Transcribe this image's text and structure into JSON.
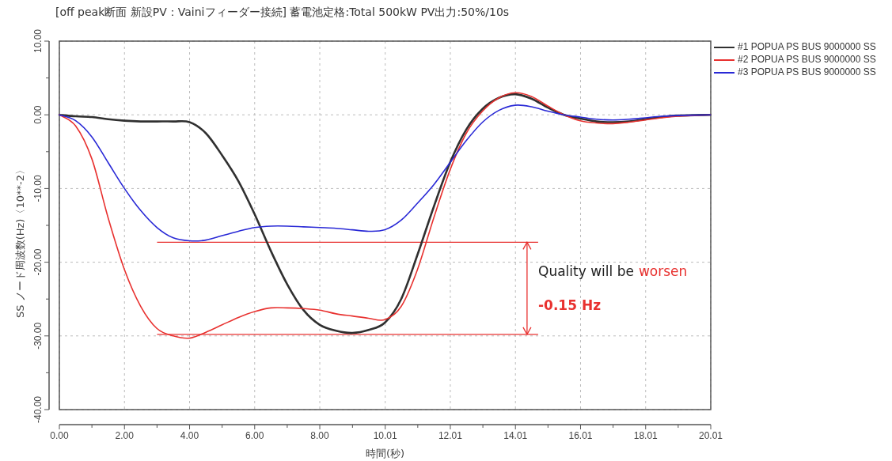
{
  "chart_data": {
    "type": "line",
    "title": "[off peak断面 新設PV：Vainiフィーダー接続] 蓄電池定格:Total  500kW  PV出力:50%/10s",
    "xlabel": "時間(秒)",
    "ylabel": "SS   ノード周波数(Hz)〈10**-2〉",
    "xlim": [
      0,
      20.01
    ],
    "xticks": [
      {
        "value": 0,
        "label": "0.00"
      },
      {
        "value": 2,
        "label": "2.00"
      },
      {
        "value": 4,
        "label": "4.00"
      },
      {
        "value": 6,
        "label": "6.00"
      },
      {
        "value": 8,
        "label": "8.00"
      },
      {
        "value": 10.01,
        "label": "10.01"
      },
      {
        "value": 12.01,
        "label": "12.01"
      },
      {
        "value": 14.01,
        "label": "14.01"
      },
      {
        "value": 16.01,
        "label": "16.01"
      },
      {
        "value": 18.01,
        "label": "18.01"
      },
      {
        "value": 20.01,
        "label": "20.01"
      }
    ],
    "ylim": [
      -40,
      10
    ],
    "yticks": [
      {
        "value": -40,
        "label": "-40.00"
      },
      {
        "value": -30,
        "label": "-30.00"
      },
      {
        "value": -20,
        "label": "-20.00"
      },
      {
        "value": -10,
        "label": "-10.00"
      },
      {
        "value": 0,
        "label": "0.00"
      },
      {
        "value": 10,
        "label": "10.00"
      }
    ],
    "grid": true,
    "legend": "top right",
    "line_style": "solid",
    "x": [
      0,
      0.5,
      1,
      1.5,
      2,
      2.5,
      3,
      3.5,
      4,
      4.5,
      5,
      5.5,
      6,
      6.5,
      7,
      7.5,
      8,
      8.5,
      9,
      9.5,
      10,
      10.5,
      11,
      11.5,
      12,
      12.5,
      13,
      13.5,
      14,
      14.5,
      15,
      15.5,
      16,
      16.5,
      17,
      17.5,
      18,
      18.5,
      19,
      20
    ],
    "series": [
      {
        "name": "#1 POPUA PS BUS 9000000 SS",
        "color": "#303030",
        "values": [
          0,
          -0.2,
          -0.3,
          -0.6,
          -0.8,
          -0.9,
          -0.9,
          -0.9,
          -1.0,
          -2.5,
          -5.5,
          -9,
          -13.5,
          -18.5,
          -23,
          -26.5,
          -28.5,
          -29.3,
          -29.6,
          -29.2,
          -28.2,
          -25,
          -19,
          -12.5,
          -6.5,
          -2,
          0.8,
          2.3,
          2.8,
          2.2,
          1,
          0,
          -0.5,
          -0.9,
          -1.0,
          -0.9,
          -0.6,
          -0.3,
          -0.1,
          0
        ]
      },
      {
        "name": "#2 POPUA PS BUS 9000000 SS",
        "color": "#e8312f",
        "values": [
          0,
          -1.5,
          -6,
          -14,
          -21,
          -26,
          -29,
          -30,
          -30.3,
          -29.5,
          -28.5,
          -27.5,
          -26.7,
          -26.2,
          -26.2,
          -26.3,
          -26.5,
          -27,
          -27.3,
          -27.6,
          -27.8,
          -26,
          -21,
          -14,
          -7.5,
          -2.5,
          0.5,
          2.3,
          3,
          2.5,
          1.2,
          0,
          -0.8,
          -1.1,
          -1.2,
          -1.0,
          -0.7,
          -0.4,
          -0.2,
          0
        ]
      },
      {
        "name": "#3 POPUA PS BUS 9000000 SS",
        "color": "#2929d6",
        "values": [
          0,
          -0.8,
          -3,
          -6.5,
          -10,
          -13,
          -15.3,
          -16.7,
          -17.1,
          -17,
          -16.4,
          -15.8,
          -15.3,
          -15.1,
          -15.1,
          -15.2,
          -15.3,
          -15.4,
          -15.6,
          -15.8,
          -15.6,
          -14.3,
          -12,
          -9.5,
          -6.5,
          -3.5,
          -1,
          0.6,
          1.3,
          1.1,
          0.5,
          0,
          -0.3,
          -0.6,
          -0.7,
          -0.6,
          -0.4,
          -0.2,
          -0.1,
          0
        ]
      }
    ],
    "ref_lines": [
      {
        "axis": "y",
        "value": -17.3,
        "color": "#e8312f"
      },
      {
        "axis": "y",
        "value": -29.8,
        "color": "#e8312f"
      }
    ],
    "annotations": [
      "Quality will be",
      "worsen",
      "-0.15 Hz"
    ]
  }
}
